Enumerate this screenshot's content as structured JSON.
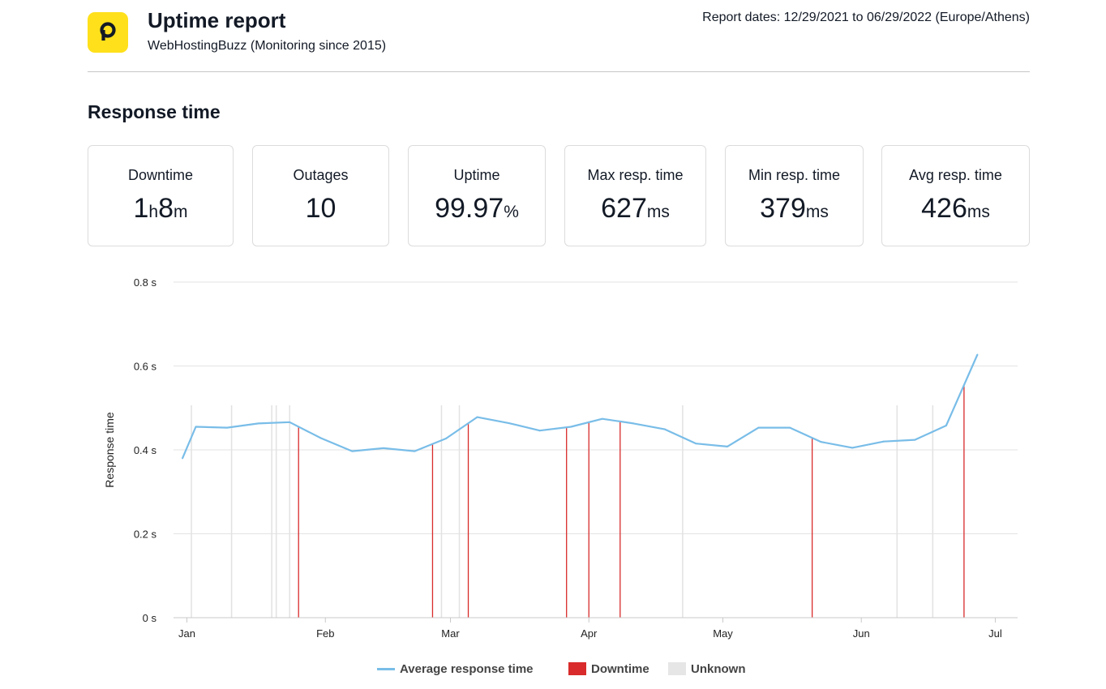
{
  "header": {
    "title": "Uptime report",
    "subtitle": "WebHostingBuzz (Monitoring since 2015)",
    "report_dates": "Report dates: 12/29/2021 to 06/29/2022 (Europe/Athens)",
    "logo_icon": "p-logo-icon",
    "brand_color": "#ffe01b"
  },
  "section": {
    "title": "Response time"
  },
  "stats": [
    {
      "label": "Downtime",
      "parts": [
        [
          "1",
          ""
        ],
        [
          "h",
          "unit"
        ],
        [
          "8",
          ""
        ],
        [
          "m",
          "unit"
        ]
      ]
    },
    {
      "label": "Outages",
      "parts": [
        [
          "10",
          ""
        ]
      ]
    },
    {
      "label": "Uptime",
      "parts": [
        [
          "99.97",
          ""
        ],
        [
          "%",
          "unit"
        ]
      ]
    },
    {
      "label": "Max resp. time",
      "parts": [
        [
          "627",
          ""
        ],
        [
          "ms",
          "unit"
        ]
      ]
    },
    {
      "label": "Min resp. time",
      "parts": [
        [
          "379",
          ""
        ],
        [
          "ms",
          "unit"
        ]
      ]
    },
    {
      "label": "Avg resp. time",
      "parts": [
        [
          "426",
          ""
        ],
        [
          "ms",
          "unit"
        ]
      ]
    }
  ],
  "chart_data": {
    "type": "line",
    "ylabel": "Response time",
    "ylim": [
      0,
      0.8
    ],
    "y_ticks": [
      "0 s",
      "0.2 s",
      "0.4 s",
      "0.6 s",
      "0.8 s"
    ],
    "y_tick_values": [
      0,
      0.2,
      0.4,
      0.6,
      0.8
    ],
    "x_range": [
      "2021-12-29",
      "2022-07-06"
    ],
    "x_tick_labels": [
      "Jan",
      "Feb",
      "Mar",
      "Apr",
      "May",
      "Jun",
      "Jul"
    ],
    "x_tick_dates": [
      "2022-01-01",
      "2022-02-01",
      "2022-03-01",
      "2022-04-01",
      "2022-05-01",
      "2022-06-01",
      "2022-07-01"
    ],
    "series": [
      {
        "name": "Average response time",
        "color": "#79bde8",
        "x": [
          "2021-12-31",
          "2022-01-03",
          "2022-01-10",
          "2022-01-17",
          "2022-01-24",
          "2022-01-31",
          "2022-02-07",
          "2022-02-14",
          "2022-02-21",
          "2022-02-28",
          "2022-03-07",
          "2022-03-14",
          "2022-03-21",
          "2022-03-28",
          "2022-04-04",
          "2022-04-11",
          "2022-04-18",
          "2022-04-25",
          "2022-05-02",
          "2022-05-09",
          "2022-05-16",
          "2022-05-23",
          "2022-05-30",
          "2022-06-06",
          "2022-06-13",
          "2022-06-20",
          "2022-06-27"
        ],
        "y": [
          0.38,
          0.455,
          0.453,
          0.463,
          0.466,
          0.428,
          0.397,
          0.404,
          0.397,
          0.427,
          0.478,
          0.464,
          0.446,
          0.455,
          0.474,
          0.463,
          0.449,
          0.415,
          0.408,
          0.453,
          0.453,
          0.419,
          0.405,
          0.42,
          0.424,
          0.458,
          0.627
        ]
      }
    ],
    "downtime_dates": [
      "2022-01-26",
      "2022-02-25",
      "2022-03-05",
      "2022-03-27",
      "2022-04-01",
      "2022-04-08",
      "2022-05-21",
      "2022-06-24"
    ],
    "unknown_dates": [
      "2022-01-02",
      "2022-01-11",
      "2022-01-20",
      "2022-01-21",
      "2022-01-24",
      "2022-02-27",
      "2022-03-03",
      "2022-04-22",
      "2022-06-09",
      "2022-06-17"
    ],
    "legend": [
      {
        "label": "Average response time",
        "color": "#79bde8"
      },
      {
        "label": "Downtime",
        "color": "#d92b2b"
      },
      {
        "label": "Unknown",
        "color": "#e6e6e6"
      }
    ],
    "grid": true
  }
}
